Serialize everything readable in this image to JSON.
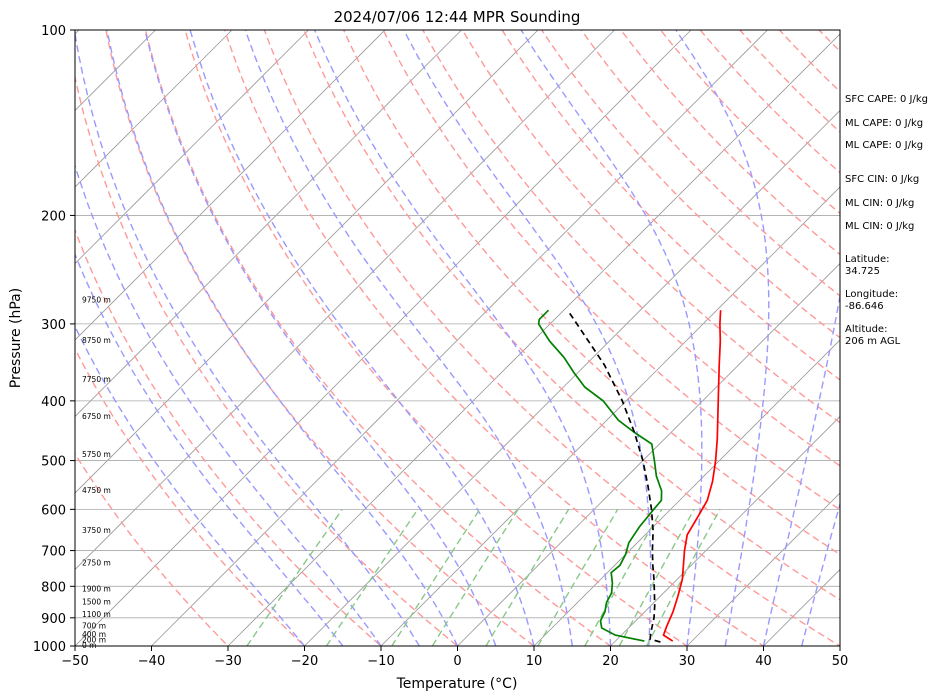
{
  "chart_data": {
    "type": "line",
    "title": "2024/07/06 12:44 MPR Sounding",
    "xlabel": "Temperature (°C)",
    "ylabel": "Pressure (hPa)",
    "xlim": [
      -50,
      50
    ],
    "ylim": [
      1000,
      100
    ],
    "y_scale": "log",
    "x_ticks": [
      "−50",
      "−40",
      "−30",
      "−20",
      "−10",
      "0",
      "10",
      "20",
      "30",
      "40",
      "50"
    ],
    "y_ticks": [
      "1000",
      "900",
      "800",
      "700",
      "600",
      "500",
      "400",
      "300",
      "200",
      "100"
    ],
    "grid": true,
    "series": [
      {
        "color": "#ff0000",
        "x_is_temperature_c": true,
        "points": [
          {
            "p": 982,
            "t": 27.5
          },
          {
            "p": 960,
            "t": 25.5
          },
          {
            "p": 930,
            "t": 24.8
          },
          {
            "p": 880,
            "t": 23.7
          },
          {
            "p": 830,
            "t": 22.3
          },
          {
            "p": 780,
            "t": 20.7
          },
          {
            "p": 740,
            "t": 19.0
          },
          {
            "p": 700,
            "t": 17.2
          },
          {
            "p": 660,
            "t": 15.5
          },
          {
            "p": 620,
            "t": 14.6
          },
          {
            "p": 580,
            "t": 13.6
          },
          {
            "p": 540,
            "t": 11.8
          },
          {
            "p": 500,
            "t": 9.5
          },
          {
            "p": 460,
            "t": 6.8
          },
          {
            "p": 420,
            "t": 3.7
          },
          {
            "p": 380,
            "t": 0.3
          },
          {
            "p": 350,
            "t": -2.5
          },
          {
            "p": 320,
            "t": -5.5
          },
          {
            "p": 300,
            "t": -7.8
          },
          {
            "p": 285,
            "t": -9.5
          }
        ]
      },
      {
        "color": "#008000",
        "x_is_temperature_c": true,
        "points": [
          {
            "p": 982,
            "t": 23.8
          },
          {
            "p": 960,
            "t": 19.2
          },
          {
            "p": 935,
            "t": 16.5
          },
          {
            "p": 910,
            "t": 15.4
          },
          {
            "p": 880,
            "t": 14.8
          },
          {
            "p": 850,
            "t": 13.8
          },
          {
            "p": 820,
            "t": 13.2
          },
          {
            "p": 790,
            "t": 12.0
          },
          {
            "p": 760,
            "t": 10.5
          },
          {
            "p": 740,
            "t": 10.7
          },
          {
            "p": 710,
            "t": 10.0
          },
          {
            "p": 680,
            "t": 8.9
          },
          {
            "p": 640,
            "t": 8.2
          },
          {
            "p": 600,
            "t": 7.8
          },
          {
            "p": 580,
            "t": 7.6
          },
          {
            "p": 560,
            "t": 6.4
          },
          {
            "p": 530,
            "t": 3.8
          },
          {
            "p": 500,
            "t": 1.5
          },
          {
            "p": 470,
            "t": -1.0
          },
          {
            "p": 450,
            "t": -4.8
          },
          {
            "p": 430,
            "t": -8.5
          },
          {
            "p": 400,
            "t": -13.0
          },
          {
            "p": 380,
            "t": -17.2
          },
          {
            "p": 360,
            "t": -20.5
          },
          {
            "p": 340,
            "t": -23.8
          },
          {
            "p": 320,
            "t": -27.8
          },
          {
            "p": 300,
            "t": -31.5
          },
          {
            "p": 295,
            "t": -32.0
          },
          {
            "p": 285,
            "t": -32.0
          }
        ]
      },
      {
        "color": "#000000",
        "dash": "dashed",
        "x_is_temperature_c": true,
        "points": [
          {
            "p": 985,
            "t": 26.0
          },
          {
            "p": 975,
            "t": 24.3
          },
          {
            "p": 960,
            "t": 23.8
          },
          {
            "p": 940,
            "t": 23.2
          },
          {
            "p": 900,
            "t": 22.0
          },
          {
            "p": 860,
            "t": 20.5
          },
          {
            "p": 820,
            "t": 18.8
          },
          {
            "p": 780,
            "t": 17.0
          },
          {
            "p": 740,
            "t": 15.0
          },
          {
            "p": 700,
            "t": 13.0
          },
          {
            "p": 650,
            "t": 10.5
          },
          {
            "p": 600,
            "t": 7.5
          },
          {
            "p": 550,
            "t": 4.0
          },
          {
            "p": 500,
            "t": 0.0
          },
          {
            "p": 450,
            "t": -4.8
          },
          {
            "p": 400,
            "t": -10.5
          },
          {
            "p": 350,
            "t": -17.5
          },
          {
            "p": 300,
            "t": -26.5
          },
          {
            "p": 285,
            "t": -29.5
          }
        ]
      }
    ],
    "height_labels": [
      {
        "p": 1000,
        "label": "0 m"
      },
      {
        "p": 980,
        "label": "200 m"
      },
      {
        "p": 960,
        "label": "400 m"
      },
      {
        "p": 930,
        "label": "700 m"
      },
      {
        "p": 890,
        "label": "1100 m"
      },
      {
        "p": 850,
        "label": "1500 m"
      },
      {
        "p": 810,
        "label": "1900 m"
      },
      {
        "p": 735,
        "label": "2750 m"
      },
      {
        "p": 650,
        "label": "3750 m"
      },
      {
        "p": 560,
        "label": "4750 m"
      },
      {
        "p": 490,
        "label": "5750 m"
      },
      {
        "p": 425,
        "label": "6750 m"
      },
      {
        "p": 370,
        "label": "7750 m"
      },
      {
        "p": 320,
        "label": "8750 m"
      },
      {
        "p": 275,
        "label": "9750 m"
      }
    ]
  },
  "side_panel": {
    "sfc_cape": "SFC CAPE: 0 J/kg",
    "ml_cape_1": "ML CAPE: 0 J/kg",
    "ml_cape_2": "ML CAPE: 0 J/kg",
    "sfc_cin": "SFC CIN: 0 J/kg",
    "ml_cin_1": "ML CIN: 0 J/kg",
    "ml_cin_2": "ML CIN: 0 J/kg",
    "latitude_label": "Latitude:",
    "latitude_value": "34.725",
    "longitude_label": "Longitude:",
    "longitude_value": "-86.646",
    "altitude_label": "Altitude:",
    "altitude_value": "206 m AGL"
  },
  "colors": {
    "temperature": "#ff0000",
    "dewpoint": "#008000",
    "parcel": "#000000",
    "dry_adiabat": "#ff9999",
    "moist_adiabat": "#9999ff",
    "mixing_ratio": "#88c888",
    "isotherm": "#999999"
  }
}
